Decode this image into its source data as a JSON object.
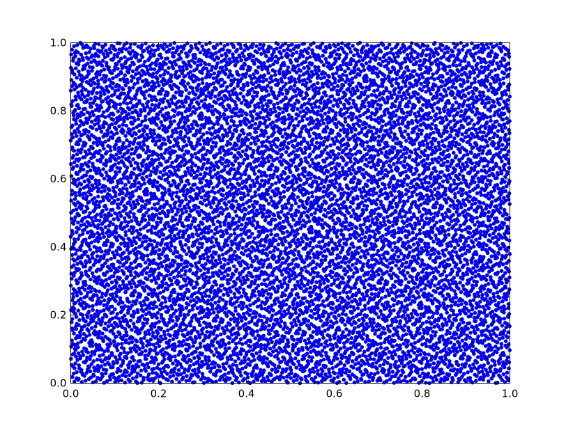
{
  "chart_data": {
    "type": "scatter",
    "title": "",
    "xlabel": "",
    "ylabel": "",
    "xlim": [
      0.0,
      1.0
    ],
    "ylim": [
      0.0,
      1.0
    ],
    "grid": false,
    "marker_color": "#0000ff",
    "marker_edge_color": "#00008b",
    "x_ticks": [
      0.0,
      0.2,
      0.4,
      0.6,
      0.8,
      1.0
    ],
    "y_ticks": [
      0.0,
      0.2,
      0.4,
      0.6,
      0.8,
      1.0
    ],
    "x_tick_labels": [
      "0.0",
      "0.2",
      "0.4",
      "0.6",
      "0.8",
      "1.0"
    ],
    "y_tick_labels": [
      "0.0",
      "0.2",
      "0.4",
      "0.6",
      "0.8",
      "1.0"
    ],
    "series": [
      {
        "point_count": 10000,
        "distribution": "low-discrepancy quasi-random fill of the unit square"
      }
    ]
  }
}
